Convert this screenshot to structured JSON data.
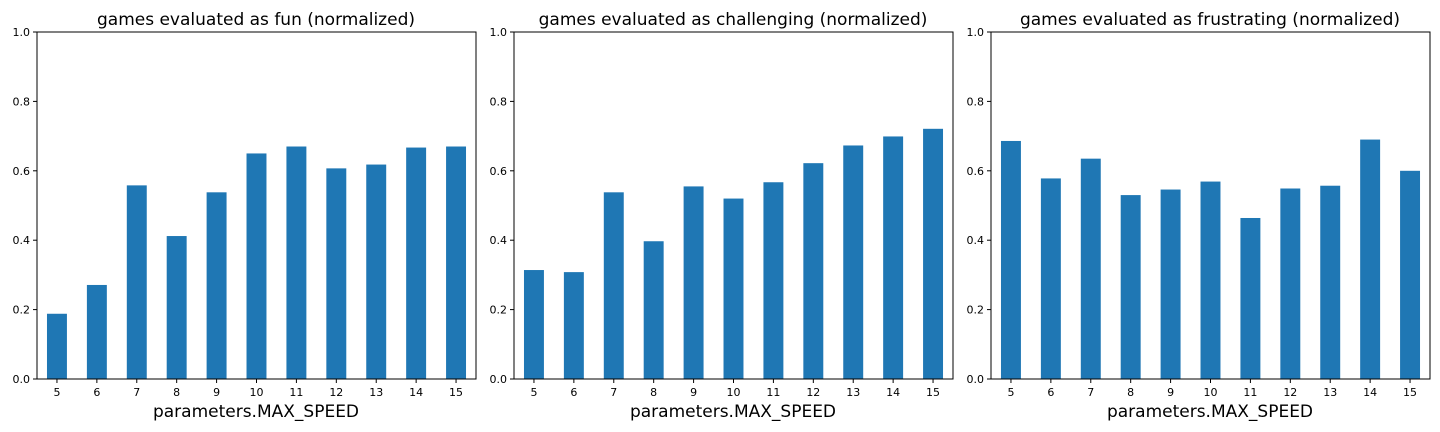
{
  "chart_data": [
    {
      "type": "bar",
      "title": "games evaluated as fun (normalized)",
      "xlabel": "parameters.MAX_SPEED",
      "ylabel": "",
      "categories": [
        "5",
        "6",
        "7",
        "8",
        "9",
        "10",
        "11",
        "12",
        "13",
        "14",
        "15"
      ],
      "values": [
        0.188,
        0.271,
        0.558,
        0.412,
        0.538,
        0.65,
        0.67,
        0.607,
        0.618,
        0.667,
        0.67
      ],
      "ylim": [
        0,
        1.0
      ],
      "yticks": [
        "0.0",
        "0.2",
        "0.4",
        "0.6",
        "0.8",
        "1.0"
      ],
      "color": "#1f77b4",
      "grid": false
    },
    {
      "type": "bar",
      "title": "games evaluated as challenging (normalized)",
      "xlabel": "parameters.MAX_SPEED",
      "ylabel": "",
      "categories": [
        "5",
        "6",
        "7",
        "8",
        "9",
        "10",
        "11",
        "12",
        "13",
        "14",
        "15"
      ],
      "values": [
        0.314,
        0.308,
        0.538,
        0.397,
        0.555,
        0.52,
        0.567,
        0.622,
        0.673,
        0.699,
        0.721
      ],
      "ylim": [
        0,
        1.0
      ],
      "yticks": [
        "0.0",
        "0.2",
        "0.4",
        "0.6",
        "0.8",
        "1.0"
      ],
      "color": "#1f77b4",
      "grid": false
    },
    {
      "type": "bar",
      "title": "games evaluated as frustrating (normalized)",
      "xlabel": "parameters.MAX_SPEED",
      "ylabel": "",
      "categories": [
        "5",
        "6",
        "7",
        "8",
        "9",
        "10",
        "11",
        "12",
        "13",
        "14",
        "15"
      ],
      "values": [
        0.686,
        0.578,
        0.635,
        0.53,
        0.546,
        0.569,
        0.464,
        0.549,
        0.557,
        0.69,
        0.6
      ],
      "ylim": [
        0,
        1.0
      ],
      "yticks": [
        "0.0",
        "0.2",
        "0.4",
        "0.6",
        "0.8",
        "1.0"
      ],
      "color": "#1f77b4",
      "grid": false
    }
  ]
}
